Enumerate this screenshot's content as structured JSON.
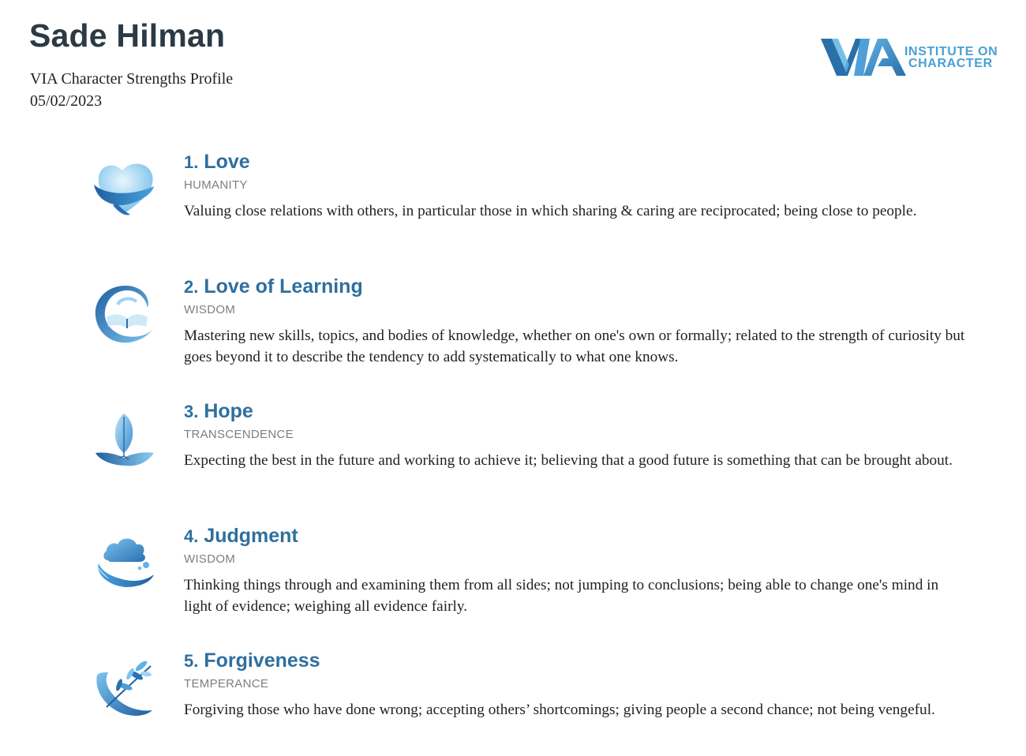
{
  "header": {
    "name": "Sade Hilman",
    "subtitle": "VIA Character Strengths Profile",
    "date": "05/02/2023"
  },
  "logo": {
    "mark": "VIA",
    "line1": "INSTITUTE ON",
    "line2": "CHARACTER",
    "colors": {
      "dark": "#2a6fa8",
      "light": "#5fb4e6"
    }
  },
  "strengths": [
    {
      "rank": "1.",
      "name": "Love",
      "virtue": "HUMANITY",
      "icon": "heart-icon",
      "description": "Valuing close relations with others, in particular those in which sharing & caring are reciprocated; being close to people."
    },
    {
      "rank": "2.",
      "name": "Love of Learning",
      "virtue": "WISDOM",
      "icon": "open-book-icon",
      "description": "Mastering new skills, topics, and bodies of knowledge, whether on one's own or formally; related to the strength of curiosity but goes beyond it to describe the tendency to add systematically to what one knows."
    },
    {
      "rank": "3.",
      "name": "Hope",
      "virtue": "TRANSCENDENCE",
      "icon": "sprout-icon",
      "description": "Expecting the best in the future and working to achieve it; believing that a good future is something that can be brought about."
    },
    {
      "rank": "4.",
      "name": "Judgment",
      "virtue": "WISDOM",
      "icon": "cloud-icon",
      "description": "Thinking things through and examining them from all sides; not jumping to conclusions; being able to change one's mind in light of evidence; weighing all evidence fairly."
    },
    {
      "rank": "5.",
      "name": "Forgiveness",
      "virtue": "TEMPERANCE",
      "icon": "olive-branch-icon",
      "description": "Forgiving those who have done wrong; accepting others’ shortcomings; giving people a second chance; not being vengeful."
    }
  ],
  "colors": {
    "title": "#2f6f9e",
    "virtue": "#7a7f85",
    "icon_light": "#9fd3f2",
    "icon_dark": "#2a6fb0"
  }
}
